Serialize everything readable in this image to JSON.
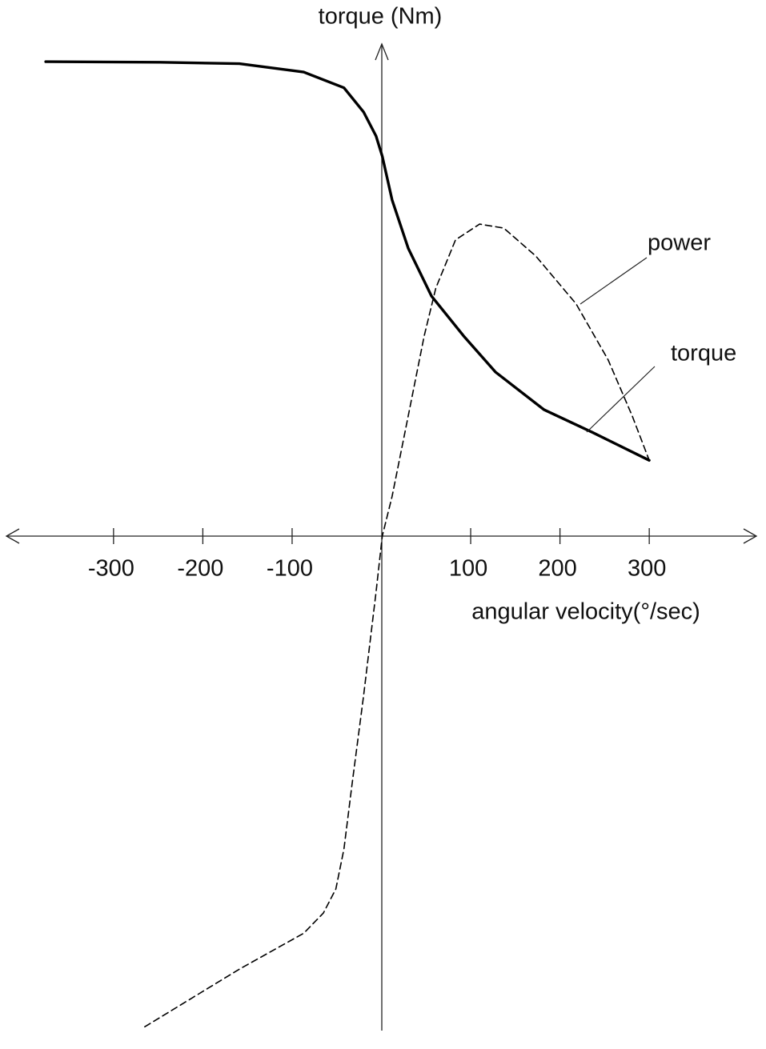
{
  "chart_data": {
    "type": "line",
    "y_label": "torque (Nm)",
    "x_label": "angular velocity(°/sec)",
    "xlim": [
      -420,
      420
    ],
    "ylim": [
      -100,
      100
    ],
    "xticks": [
      -300,
      -200,
      -100,
      100,
      200,
      300
    ],
    "series": [
      {
        "name": "torque",
        "color": "#000000",
        "style": "solid",
        "x": [
          -376,
          -248,
          -159,
          -87,
          -42,
          -20,
          -6,
          1,
          12,
          30,
          56,
          92,
          128,
          182,
          236,
          300
        ],
        "values": [
          96.4,
          96.3,
          96.0,
          94.3,
          91.1,
          86.2,
          81.3,
          77.2,
          68.3,
          58.5,
          48.8,
          40.7,
          33.3,
          25.7,
          21.1,
          15.4
        ]
      },
      {
        "name": "power",
        "color": "#000000",
        "style": "dashed",
        "x": [
          -265,
          -159,
          -87,
          -65,
          -51,
          -42,
          -33,
          -20,
          -6,
          1,
          12,
          30,
          48,
          61,
          83,
          110,
          137,
          173,
          218,
          254,
          281,
          300
        ],
        "values": [
          -99.7,
          -88.0,
          -80.7,
          -76.6,
          -71.7,
          -63.6,
          -50.6,
          -32.5,
          -11.4,
          0,
          8.1,
          24.4,
          40.7,
          50.4,
          60.2,
          63.4,
          62.6,
          56.9,
          47.2,
          35.8,
          24.4,
          15.4
        ]
      }
    ]
  }
}
